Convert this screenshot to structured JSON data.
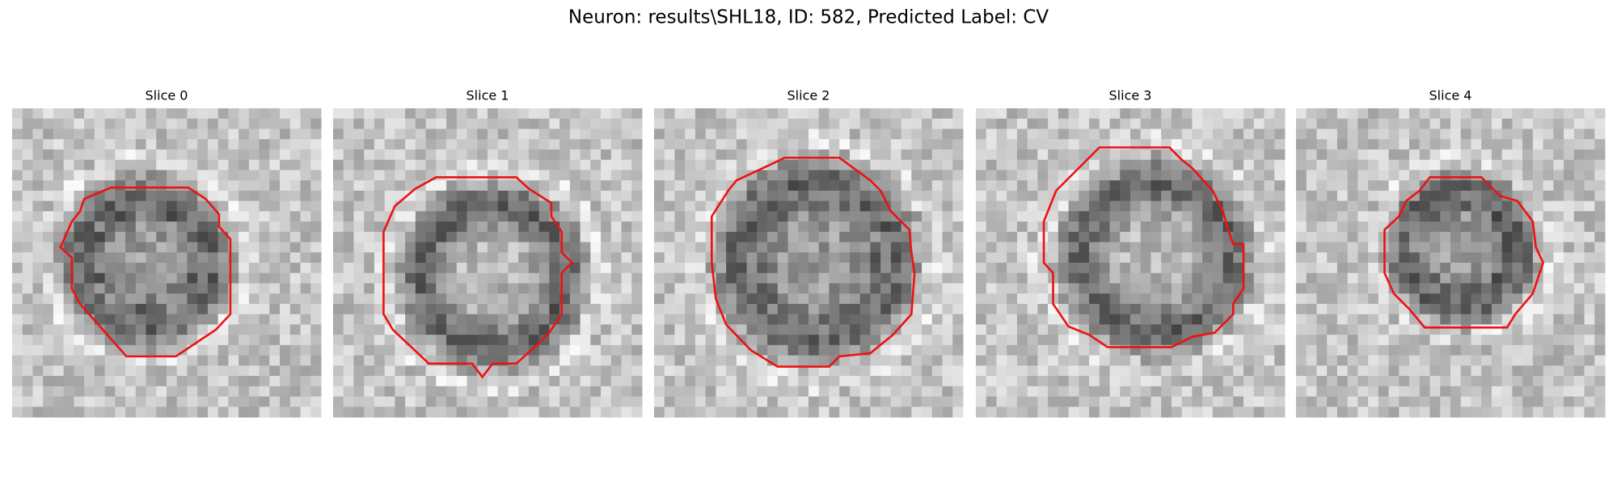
{
  "title": "Neuron: results\\SHL18, ID: 582, Predicted Label: CV",
  "panels": [
    {
      "title": "Slice 0"
    },
    {
      "title": "Slice 1"
    },
    {
      "title": "Slice 2"
    },
    {
      "title": "Slice 3"
    },
    {
      "title": "Slice 4"
    }
  ]
}
